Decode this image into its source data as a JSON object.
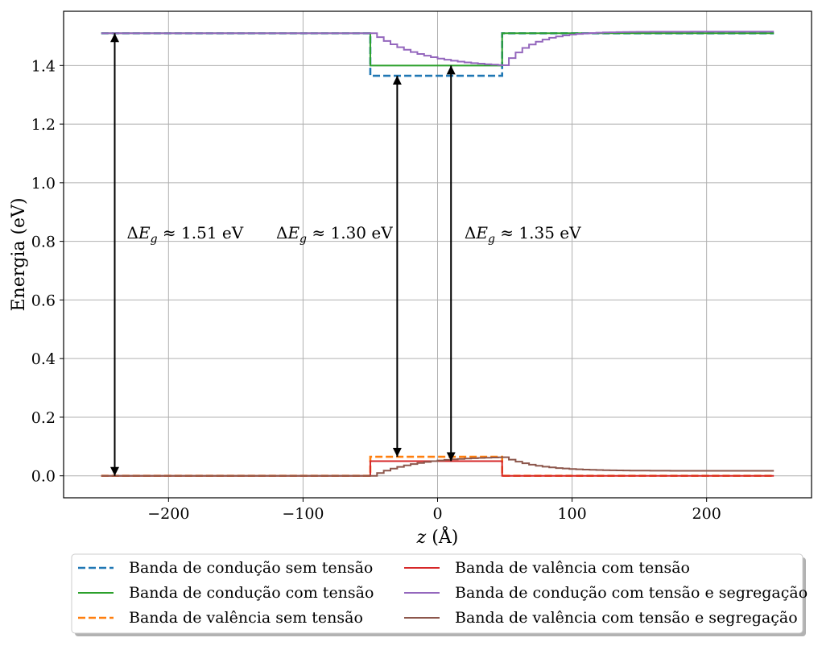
{
  "chart_data": {
    "type": "line",
    "xlabel": "z (Å)",
    "ylabel": "Energia (eV)",
    "xlim": [
      -278,
      278
    ],
    "ylim": [
      -0.075,
      1.585
    ],
    "xticks": [
      -200,
      -100,
      0,
      100,
      200
    ],
    "xtick_labels": [
      "−200",
      "−100",
      "0",
      "100",
      "200"
    ],
    "yticks": [
      0.0,
      0.2,
      0.4,
      0.6,
      0.8,
      1.0,
      1.2,
      1.4
    ],
    "ytick_labels": [
      "0.0",
      "0.2",
      "0.4",
      "0.6",
      "0.8",
      "1.0",
      "1.2",
      "1.4"
    ],
    "grid": true,
    "legend_position": "bottom-center-outside",
    "legend_columns": 2,
    "series": [
      {
        "name": "Banda de condução sem tensão",
        "color": "#1f77b4",
        "style": "dashed",
        "x": [
          -250,
          -50,
          -50,
          48,
          48,
          250
        ],
        "y": [
          1.51,
          1.51,
          1.365,
          1.365,
          1.51,
          1.51
        ]
      },
      {
        "name": "Banda de condução com tensão",
        "color": "#2ca02c",
        "style": "solid",
        "x": [
          -250,
          -50,
          -50,
          48,
          48,
          250
        ],
        "y": [
          1.51,
          1.51,
          1.4,
          1.4,
          1.51,
          1.51
        ]
      },
      {
        "name": "Banda de valência sem tensão",
        "color": "#ff7f0e",
        "style": "dashed",
        "x": [
          -250,
          -50,
          -50,
          48,
          48,
          250
        ],
        "y": [
          0.0,
          0.0,
          0.065,
          0.065,
          0.0,
          0.0
        ]
      },
      {
        "name": "Banda de valência com tensão",
        "color": "#d62728",
        "style": "solid",
        "x": [
          -250,
          -50,
          -50,
          48,
          48,
          250
        ],
        "y": [
          0.0,
          0.0,
          0.05,
          0.05,
          0.0,
          0.0
        ]
      },
      {
        "name": "Banda de condução com tensão e segregação",
        "color": "#9467bd",
        "style": "step",
        "x": [
          -250,
          -50,
          -45,
          -40,
          -35,
          -30,
          -25,
          -20,
          -15,
          -10,
          -5,
          0,
          5,
          10,
          15,
          20,
          25,
          30,
          35,
          40,
          45,
          48,
          53,
          58,
          63,
          68,
          73,
          78,
          83,
          88,
          93,
          98,
          103,
          108,
          113,
          118,
          123,
          128,
          133,
          138,
          143,
          148,
          153,
          158,
          163,
          168,
          173,
          178,
          183,
          188,
          193,
          198,
          203,
          208,
          213,
          218,
          223,
          228,
          233,
          238,
          243,
          248,
          250
        ],
        "y": [
          1.51,
          1.51,
          1.4968,
          1.4838,
          1.4724,
          1.4624,
          1.4537,
          1.446,
          1.4393,
          1.4334,
          1.4283,
          1.4237,
          1.4198,
          1.4163,
          1.4132,
          1.4106,
          1.4082,
          1.4062,
          1.4044,
          1.4028,
          1.4015,
          1.4007,
          1.4253,
          1.4446,
          1.4598,
          1.4718,
          1.4812,
          1.4886,
          1.4945,
          1.499,
          1.5027,
          1.5055,
          1.5077,
          1.5094,
          1.5108,
          1.5118,
          1.5127,
          1.5133,
          1.5138,
          1.5142,
          1.5145,
          1.5148,
          1.5149,
          1.5151,
          1.5152,
          1.5153,
          1.5153,
          1.5154,
          1.5154,
          1.5155,
          1.5155,
          1.5155,
          1.5155,
          1.5155,
          1.5155,
          1.5155,
          1.5155,
          1.5155,
          1.5155,
          1.5155,
          1.5155,
          1.5155,
          1.5155
        ]
      },
      {
        "name": "Banda de valência com tensão e segregação",
        "color": "#8c564b",
        "style": "step",
        "x": [
          -250,
          -50,
          -45,
          -40,
          -35,
          -30,
          -25,
          -20,
          -15,
          -10,
          -5,
          0,
          5,
          10,
          15,
          20,
          25,
          30,
          35,
          40,
          45,
          48,
          53,
          58,
          63,
          68,
          73,
          78,
          83,
          88,
          93,
          98,
          103,
          108,
          113,
          118,
          123,
          128,
          133,
          138,
          143,
          148,
          153,
          158,
          163,
          168,
          173,
          178,
          183,
          188,
          193,
          198,
          203,
          208,
          213,
          218,
          223,
          228,
          233,
          238,
          243,
          248,
          250
        ],
        "y": [
          0.0,
          0.0,
          0.0094,
          0.0176,
          0.0246,
          0.0306,
          0.0357,
          0.0402,
          0.044,
          0.0472,
          0.05,
          0.0524,
          0.0544,
          0.0562,
          0.0576,
          0.0589,
          0.06,
          0.0609,
          0.0617,
          0.0624,
          0.063,
          0.0633,
          0.0551,
          0.0483,
          0.0427,
          0.0381,
          0.0343,
          0.0312,
          0.0286,
          0.0265,
          0.0248,
          0.0233,
          0.0222,
          0.0212,
          0.0204,
          0.0198,
          0.0192,
          0.0188,
          0.0185,
          0.0182,
          0.0179,
          0.0177,
          0.0176,
          0.0174,
          0.0173,
          0.0173,
          0.0172,
          0.0171,
          0.0171,
          0.0171,
          0.017,
          0.017,
          0.017,
          0.017,
          0.017,
          0.017,
          0.017,
          0.017,
          0.017,
          0.017,
          0.017,
          0.017,
          0.017
        ]
      }
    ],
    "annotations": [
      {
        "text": "ΔE_g ≈ 1.51 eV",
        "arrow_x": -240,
        "arrow_y_from": 0.0,
        "arrow_y_to": 1.51,
        "text_x": -231,
        "text_y": 0.81
      },
      {
        "text": "ΔE_g ≈ 1.30 eV",
        "arrow_x": -30,
        "arrow_y_from": 0.065,
        "arrow_y_to": 1.365,
        "text_x": -120,
        "text_y": 0.81
      },
      {
        "text": "ΔE_g ≈ 1.35 eV",
        "arrow_x": 10,
        "arrow_y_from": 0.05,
        "arrow_y_to": 1.4,
        "text_x": 20,
        "text_y": 0.81
      }
    ]
  }
}
